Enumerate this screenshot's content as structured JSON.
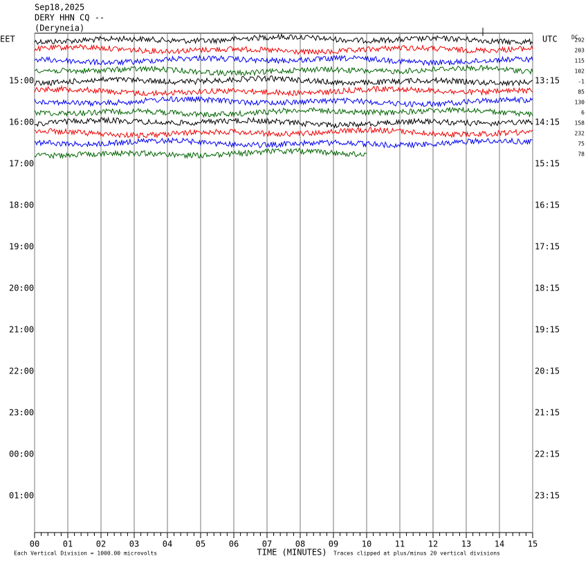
{
  "header": {
    "date": "Sep18,2025",
    "station": "DERY HHN CQ --",
    "location": "(Deryneia)"
  },
  "chart_data": {
    "type": "helicorder",
    "left_axis_label": "EET",
    "right_axis_label": "UTC",
    "dc_label": "DC",
    "x_label": "TIME (MINUTES)",
    "xlim": [
      0,
      15
    ],
    "xticks": [
      {
        "value": 0,
        "label": "00"
      },
      {
        "value": 1,
        "label": "01"
      },
      {
        "value": 2,
        "label": "02"
      },
      {
        "value": 3,
        "label": "03"
      },
      {
        "value": 4,
        "label": "04"
      },
      {
        "value": 5,
        "label": "05"
      },
      {
        "value": 6,
        "label": "06"
      },
      {
        "value": 7,
        "label": "07"
      },
      {
        "value": 8,
        "label": "08"
      },
      {
        "value": 9,
        "label": "09"
      },
      {
        "value": 10,
        "label": "10"
      },
      {
        "value": 11,
        "label": "11"
      },
      {
        "value": 12,
        "label": "12"
      },
      {
        "value": 13,
        "label": "13"
      },
      {
        "value": 14,
        "label": "14"
      },
      15
    ],
    "eet_labels": [
      "15:00",
      "16:00",
      "17:00",
      "18:00",
      "19:00",
      "20:00",
      "21:00",
      "22:00",
      "23:00",
      "00:00",
      "01:00"
    ],
    "utc_labels": [
      "13:15",
      "14:15",
      "15:15",
      "16:15",
      "17:15",
      "18:15",
      "19:15",
      "20:15",
      "21:15",
      "22:15",
      "23:15"
    ],
    "traces": [
      {
        "color": "#000000",
        "dc": 292,
        "end": 15
      },
      {
        "color": "#ee0000",
        "dc": 203,
        "end": 15
      },
      {
        "color": "#0000ee",
        "dc": 115,
        "end": 15
      },
      {
        "color": "#006400",
        "dc": 102,
        "end": 15
      },
      {
        "color": "#000000",
        "dc": -1,
        "end": 15
      },
      {
        "color": "#ee0000",
        "dc": 85,
        "end": 15
      },
      {
        "color": "#0000ee",
        "dc": 130,
        "end": 15
      },
      {
        "color": "#006400",
        "dc": 6,
        "end": 15
      },
      {
        "color": "#000000",
        "dc": 158,
        "end": 15
      },
      {
        "color": "#ee0000",
        "dc": 232,
        "end": 15
      },
      {
        "color": "#0000ee",
        "dc": 75,
        "end": 15
      },
      {
        "color": "#006400",
        "dc": 78,
        "end": 10
      }
    ],
    "footnote_left": "Each Vertical Division = 1000.00 microvolts",
    "footnote_right": "Traces clipped at plus/minus 20 vertical divisions"
  }
}
